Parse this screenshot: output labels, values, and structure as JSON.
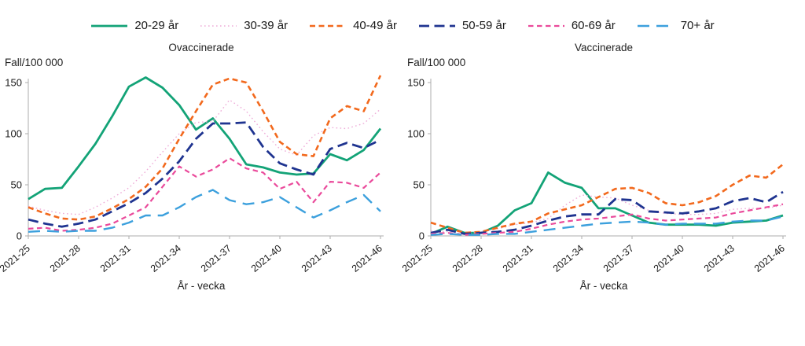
{
  "page": {
    "background": "#ffffff"
  },
  "legend": {
    "items": [
      {
        "label": "20-29 år",
        "color": "#13a377",
        "dash": "solid"
      },
      {
        "label": "30-39 år",
        "color": "#eeacd8",
        "dash": "dotted"
      },
      {
        "label": "40-49 år",
        "color": "#f2691d",
        "dash": "dash-short"
      },
      {
        "label": "50-59 år",
        "color": "#1f3490",
        "dash": "dash-long"
      },
      {
        "label": "60-69 år",
        "color": "#ea4a9b",
        "dash": "dash-med"
      },
      {
        "label": "70+ år",
        "color": "#3ca0dd",
        "dash": "dash-xl"
      }
    ]
  },
  "chart_data": [
    {
      "type": "line",
      "title": "Ovaccinerade",
      "ylabel": "Fall/100 000",
      "xlabel": "År - vecka",
      "ylim": [
        0,
        160
      ],
      "yticks": [
        0,
        50,
        100,
        150
      ],
      "tick_every": 3,
      "grid": false,
      "categories": [
        "2021-25",
        "2021-26",
        "2021-27",
        "2021-28",
        "2021-29",
        "2021-30",
        "2021-31",
        "2021-32",
        "2021-33",
        "2021-34",
        "2021-35",
        "2021-36",
        "2021-37",
        "2021-38",
        "2021-39",
        "2021-40",
        "2021-41",
        "2021-42",
        "2021-43",
        "2021-44",
        "2021-45",
        "2021-46"
      ],
      "series": [
        {
          "name": "20-29 år",
          "values": [
            36,
            46,
            47,
            68,
            90,
            117,
            146,
            155,
            145,
            128,
            104,
            115,
            95,
            70,
            67,
            62,
            60,
            61,
            80,
            74,
            84,
            105
          ]
        },
        {
          "name": "30-39 år",
          "values": [
            29,
            25,
            22,
            21,
            28,
            37,
            47,
            63,
            82,
            100,
            111,
            112,
            133,
            122,
            102,
            85,
            79,
            98,
            106,
            105,
            110,
            124
          ]
        },
        {
          "name": "40-49 år",
          "values": [
            28,
            22,
            17,
            16,
            19,
            27,
            36,
            48,
            66,
            95,
            122,
            148,
            154,
            150,
            122,
            92,
            80,
            78,
            115,
            127,
            122,
            157
          ]
        },
        {
          "name": "50-59 år",
          "values": [
            16,
            12,
            9,
            12,
            16,
            24,
            32,
            42,
            56,
            73,
            95,
            110,
            110,
            111,
            87,
            71,
            65,
            60,
            85,
            91,
            86,
            94
          ]
        },
        {
          "name": "60-69 år",
          "values": [
            7,
            8,
            5,
            6,
            8,
            12,
            20,
            28,
            48,
            68,
            58,
            65,
            76,
            66,
            62,
            46,
            53,
            33,
            53,
            52,
            47,
            62
          ]
        },
        {
          "name": "70+ år",
          "values": [
            4,
            5,
            4,
            5,
            5,
            8,
            13,
            20,
            20,
            28,
            38,
            45,
            35,
            31,
            33,
            38,
            28,
            18,
            25,
            33,
            40,
            24
          ]
        }
      ]
    },
    {
      "type": "line",
      "title": "Vaccinerade",
      "ylabel": "Fall/100 000",
      "xlabel": "År - vecka",
      "ylim": [
        0,
        160
      ],
      "yticks": [
        0,
        50,
        100,
        150
      ],
      "tick_every": 3,
      "grid": false,
      "categories": [
        "2021-25",
        "2021-26",
        "2021-27",
        "2021-28",
        "2021-29",
        "2021-30",
        "2021-31",
        "2021-32",
        "2021-33",
        "2021-34",
        "2021-35",
        "2021-36",
        "2021-37",
        "2021-38",
        "2021-39",
        "2021-40",
        "2021-41",
        "2021-42",
        "2021-43",
        "2021-44",
        "2021-45",
        "2021-46"
      ],
      "series": [
        {
          "name": "20-29 år",
          "values": [
            2,
            9,
            3,
            3,
            10,
            25,
            32,
            62,
            52,
            47,
            27,
            27,
            20,
            13,
            11,
            11,
            11,
            10,
            13,
            14,
            15,
            20
          ]
        },
        {
          "name": "30-39 år",
          "values": [
            5,
            4,
            2,
            4,
            7,
            11,
            13,
            17,
            30,
            40,
            38,
            37,
            30,
            25,
            22,
            21,
            21,
            22,
            26,
            27,
            27,
            30
          ]
        },
        {
          "name": "40-49 år",
          "values": [
            13,
            8,
            3,
            4,
            8,
            12,
            14,
            22,
            26,
            30,
            38,
            46,
            47,
            42,
            32,
            30,
            33,
            39,
            50,
            59,
            57,
            70
          ]
        },
        {
          "name": "50-59 år",
          "values": [
            3,
            6,
            2,
            3,
            4,
            6,
            10,
            15,
            19,
            21,
            21,
            36,
            35,
            24,
            23,
            22,
            24,
            27,
            34,
            37,
            33,
            43
          ]
        },
        {
          "name": "60-69 år",
          "values": [
            2,
            3,
            1,
            2,
            3,
            4,
            7,
            11,
            14,
            16,
            17,
            19,
            21,
            17,
            15,
            16,
            17,
            18,
            22,
            25,
            28,
            31
          ]
        },
        {
          "name": "70+ år",
          "values": [
            1,
            2,
            1,
            1,
            2,
            2,
            4,
            6,
            8,
            10,
            12,
            13,
            14,
            13,
            11,
            12,
            12,
            12,
            14,
            15,
            15,
            19
          ]
        }
      ]
    }
  ]
}
